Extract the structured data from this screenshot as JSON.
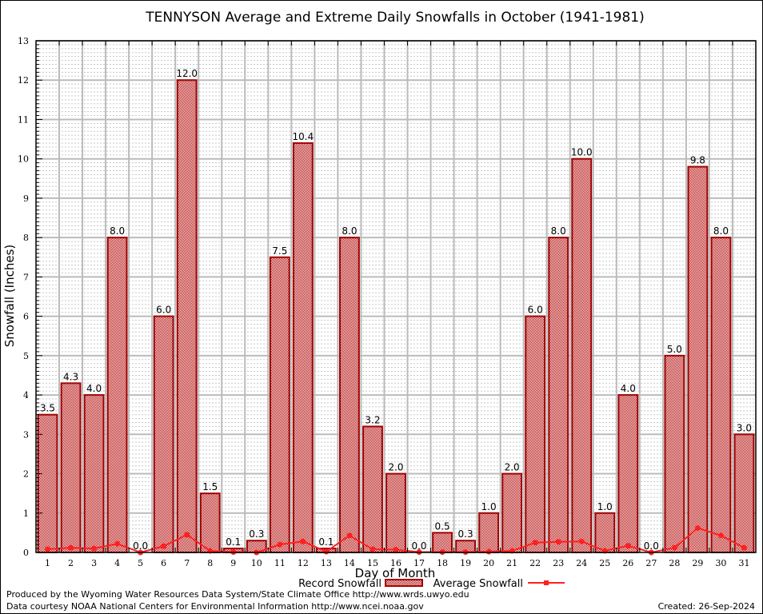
{
  "chart_data": {
    "type": "bar",
    "title": "TENNYSON Average and Extreme Daily Snowfalls in October (1941-1981)",
    "xlabel": "Day of Month",
    "ylabel": "Snowfall (Inches)",
    "ylim": [
      0,
      13
    ],
    "grid": true,
    "legend_placement": "bottom",
    "categories": [
      "1",
      "2",
      "3",
      "4",
      "5",
      "6",
      "7",
      "8",
      "9",
      "10",
      "11",
      "12",
      "13",
      "14",
      "15",
      "16",
      "17",
      "18",
      "19",
      "20",
      "21",
      "22",
      "23",
      "24",
      "25",
      "26",
      "27",
      "28",
      "29",
      "30",
      "31"
    ],
    "series": [
      {
        "name": "Record Snowfall",
        "type": "bar",
        "color": "#a00000",
        "values": [
          3.5,
          4.3,
          4.0,
          8.0,
          0.0,
          6.0,
          12.0,
          1.5,
          0.1,
          0.3,
          7.5,
          10.4,
          0.1,
          8.0,
          3.2,
          2.0,
          0.0,
          0.5,
          0.3,
          1.0,
          2.0,
          6.0,
          8.0,
          10.0,
          1.0,
          4.0,
          0.0,
          5.0,
          9.8,
          8.0,
          3.0
        ],
        "labels": [
          "3.5",
          "4.3",
          "4.0",
          "8.0",
          "0.0",
          "6.0",
          "12.0",
          "1.5",
          "0.1",
          "0.3",
          "7.5",
          "10.4",
          "0.1",
          "8.0",
          "3.2",
          "2.0",
          "0.0",
          "0.5",
          "0.3",
          "1.0",
          "2.0",
          "6.0",
          "8.0",
          "10.0",
          "1.0",
          "4.0",
          "0.0",
          "5.0",
          "9.8",
          "8.0",
          "3.0"
        ]
      },
      {
        "name": "Average Snowfall",
        "type": "line",
        "color": "#ff2020",
        "values": [
          0.08,
          0.12,
          0.1,
          0.22,
          0.0,
          0.16,
          0.45,
          0.04,
          0.01,
          0.0,
          0.2,
          0.28,
          0.02,
          0.43,
          0.08,
          0.07,
          0.01,
          0.01,
          0.01,
          0.02,
          0.04,
          0.25,
          0.27,
          0.28,
          0.04,
          0.17,
          0.0,
          0.12,
          0.62,
          0.43,
          0.12
        ]
      }
    ],
    "yticks": [
      "0",
      "1",
      "2",
      "3",
      "4",
      "5",
      "6",
      "7",
      "8",
      "9",
      "10",
      "11",
      "12",
      "13"
    ]
  },
  "footer": {
    "produced": "Produced by the Wyoming Water Resources Data System/State Climate Office http://www.wrds.uwyo.edu",
    "courtesy": "Data courtesy NOAA National Centers for Environmental Information http://www.ncei.noaa.gov",
    "created": "Created: 26-Sep-2024"
  }
}
